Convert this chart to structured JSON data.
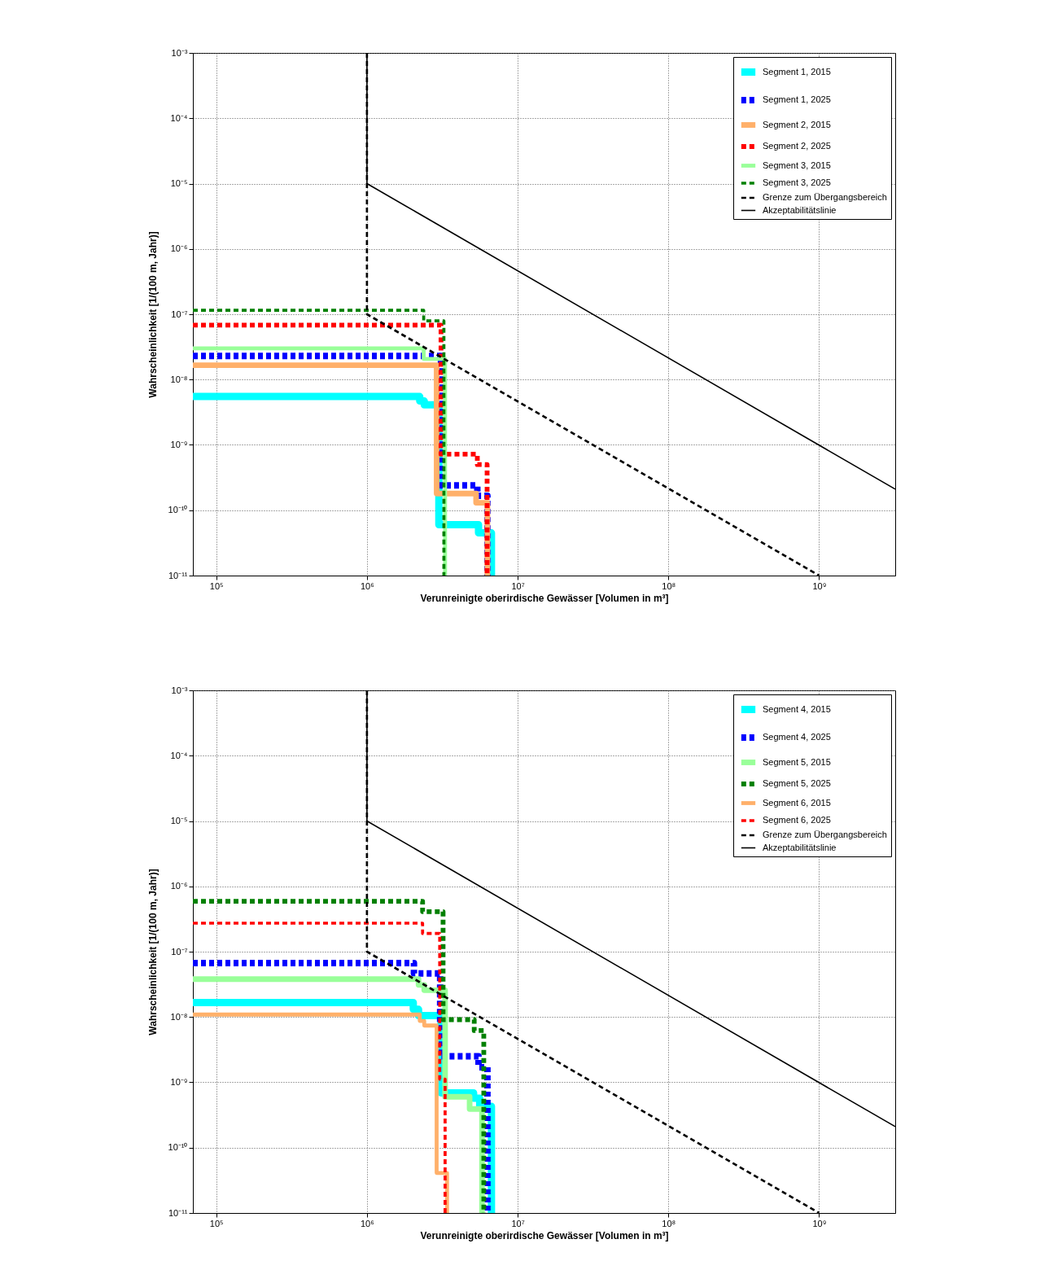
{
  "chart_data": [
    {
      "type": "step",
      "xlabel": "Verunreinigte oberirdische Gewässer [Volumen in m³]",
      "ylabel": "Wahrscheinlichkeit [1/(100 m, Jahr)]",
      "log": "xy",
      "grid": true,
      "legend": "top right",
      "xlim": [
        70000,
        3200000000
      ],
      "ylim": [
        1e-11,
        0.001
      ],
      "xticks": [
        {
          "value": 100000,
          "label": "10⁵"
        },
        {
          "value": 1000000,
          "label": "10⁶"
        },
        {
          "value": 10000000,
          "label": "10⁷"
        },
        {
          "value": 100000000,
          "label": "10⁸"
        },
        {
          "value": 1000000000,
          "label": "10⁹"
        }
      ],
      "yticks": [
        {
          "value": 1e-11,
          "label": "10⁻¹¹"
        },
        {
          "value": 1e-10,
          "label": "10⁻¹⁰"
        },
        {
          "value": 1e-09,
          "label": "10⁻⁹"
        },
        {
          "value": 1e-08,
          "label": "10⁻⁸"
        },
        {
          "value": 1e-07,
          "label": "10⁻⁷"
        },
        {
          "value": 1e-06,
          "label": "10⁻⁶"
        },
        {
          "value": 1e-05,
          "label": "10⁻⁵"
        },
        {
          "value": 0.0001,
          "label": "10⁻⁴"
        },
        {
          "value": 0.001,
          "label": "10⁻³"
        }
      ],
      "series": [
        {
          "name": "Segment 1, 2015",
          "color": "#00ffff",
          "line_style": "solid",
          "x": [
            70000,
            2240000,
            2400000,
            3000000,
            5500000,
            6700000
          ],
          "values": [
            5.5e-09,
            4.7e-09,
            4.1e-09,
            6e-11,
            4.5e-11,
            1e-11
          ]
        },
        {
          "name": "Segment 1, 2025",
          "color": "#0000ff",
          "line_style": "dashed",
          "x": [
            70000,
            3100000,
            5400000,
            6300000
          ],
          "values": [
            2.3e-08,
            2.4e-10,
            1.66e-10,
            1e-11
          ]
        },
        {
          "name": "Segment 2, 2015",
          "color": "#ffb06a",
          "line_style": "solid",
          "x": [
            70000,
            2900000,
            5300000,
            6300000
          ],
          "values": [
            1.66e-08,
            1.8e-10,
            1.3e-10,
            1e-11
          ]
        },
        {
          "name": "Segment 2, 2025",
          "color": "#ff0000",
          "line_style": "dashed",
          "x": [
            70000,
            3100000,
            5400000,
            6270000
          ],
          "values": [
            6.8e-08,
            7.2e-10,
            5e-10,
            1e-11
          ]
        },
        {
          "name": "Segment 3, 2015",
          "color": "#99ff99",
          "line_style": "solid",
          "x": [
            70000,
            2380000,
            3300000
          ],
          "values": [
            3e-08,
            2.07e-08,
            1e-11
          ]
        },
        {
          "name": "Segment 3, 2025",
          "color": "#008000",
          "line_style": "dashed",
          "x": [
            70000,
            2380000,
            3240000
          ],
          "values": [
            1.15e-07,
            7.9e-08,
            1e-11
          ]
        },
        {
          "name": "Grenze zum Übergangsbereich",
          "type": "line",
          "color": "#000000",
          "line_style": "dashed",
          "x": [
            1000000,
            1000000,
            1000000000
          ],
          "values": [
            0.001,
            1e-07,
            1e-11
          ]
        },
        {
          "name": "Akzeptabilitätslinie",
          "type": "line",
          "color": "#000000",
          "line_style": "solid",
          "x": [
            1000000,
            1000000,
            3200000000
          ],
          "values": [
            0.001,
            1e-05,
            2.1e-10
          ]
        }
      ]
    },
    {
      "type": "step",
      "xlabel": "Verunreinigte oberirdische Gewässer [Volumen in m³]",
      "ylabel": "Wahrscheinlichkeit [1/(100 m, Jahr)]",
      "log": "xy",
      "grid": true,
      "legend": "top right",
      "xlim": [
        70000,
        3200000000
      ],
      "ylim": [
        1e-11,
        0.001
      ],
      "xticks": [
        {
          "value": 100000,
          "label": "10⁵"
        },
        {
          "value": 1000000,
          "label": "10⁶"
        },
        {
          "value": 10000000,
          "label": "10⁷"
        },
        {
          "value": 100000000,
          "label": "10⁸"
        },
        {
          "value": 1000000000,
          "label": "10⁹"
        }
      ],
      "yticks": [
        {
          "value": 1e-11,
          "label": "10⁻¹¹"
        },
        {
          "value": 1e-10,
          "label": "10⁻¹⁰"
        },
        {
          "value": 1e-09,
          "label": "10⁻⁹"
        },
        {
          "value": 1e-08,
          "label": "10⁻⁸"
        },
        {
          "value": 1e-07,
          "label": "10⁻⁷"
        },
        {
          "value": 1e-06,
          "label": "10⁻⁶"
        },
        {
          "value": 1e-05,
          "label": "10⁻⁵"
        },
        {
          "value": 0.0001,
          "label": "10⁻⁴"
        },
        {
          "value": 0.001,
          "label": "10⁻³"
        }
      ],
      "series": [
        {
          "name": "Segment 4, 2015",
          "color": "#00ffff",
          "line_style": "solid",
          "x": [
            70000,
            2030000,
            2200000,
            3100000,
            5100000,
            5600000,
            6700000
          ],
          "values": [
            1.67e-08,
            1.31e-08,
            1.05e-08,
            6.9e-10,
            5.7e-10,
            4.3e-10,
            1e-11
          ]
        },
        {
          "name": "Segment 4, 2025",
          "color": "#0000ff",
          "line_style": "dashed",
          "x": [
            70000,
            2050000,
            3060000,
            5500000,
            6300000
          ],
          "values": [
            6.7e-08,
            4.65e-08,
            2.5e-09,
            1.7e-09,
            1e-11
          ]
        },
        {
          "name": "Segment 5, 2015",
          "color": "#99ff99",
          "line_style": "solid",
          "x": [
            70000,
            2200000,
            2400000,
            3300000,
            4800000,
            5800000
          ],
          "values": [
            3.8e-08,
            3.1e-08,
            2.57e-08,
            6e-10,
            3.9e-10,
            1e-11
          ]
        },
        {
          "name": "Segment 5, 2025",
          "color": "#008000",
          "line_style": "dashed",
          "x": [
            70000,
            2340000,
            3200000,
            5150000,
            5960000
          ],
          "values": [
            5.9e-07,
            4.1e-07,
            9.1e-09,
            6.2e-09,
            1e-11
          ]
        },
        {
          "name": "Segment 6, 2015",
          "color": "#ffb06a",
          "line_style": "solid",
          "x": [
            70000,
            2240000,
            2400000,
            2900000,
            3400000
          ],
          "values": [
            1.09e-08,
            8.7e-09,
            7.4e-09,
            4.1e-11,
            1e-11
          ]
        },
        {
          "name": "Segment 6, 2025",
          "color": "#ff0000",
          "line_style": "dashed",
          "x": [
            70000,
            2340000,
            3040000,
            3300000
          ],
          "values": [
            2.73e-07,
            1.9e-07,
            1.12e-09,
            1e-11
          ]
        },
        {
          "name": "Grenze zum Übergangsbereich",
          "type": "line",
          "color": "#000000",
          "line_style": "dashed",
          "x": [
            1000000,
            1000000,
            1000000000
          ],
          "values": [
            0.001,
            1e-07,
            1e-11
          ]
        },
        {
          "name": "Akzeptabilitätslinie",
          "type": "line",
          "color": "#000000",
          "line_style": "solid",
          "x": [
            1000000,
            1000000,
            3200000000
          ],
          "values": [
            0.001,
            1e-05,
            2.1e-10
          ]
        }
      ]
    }
  ]
}
